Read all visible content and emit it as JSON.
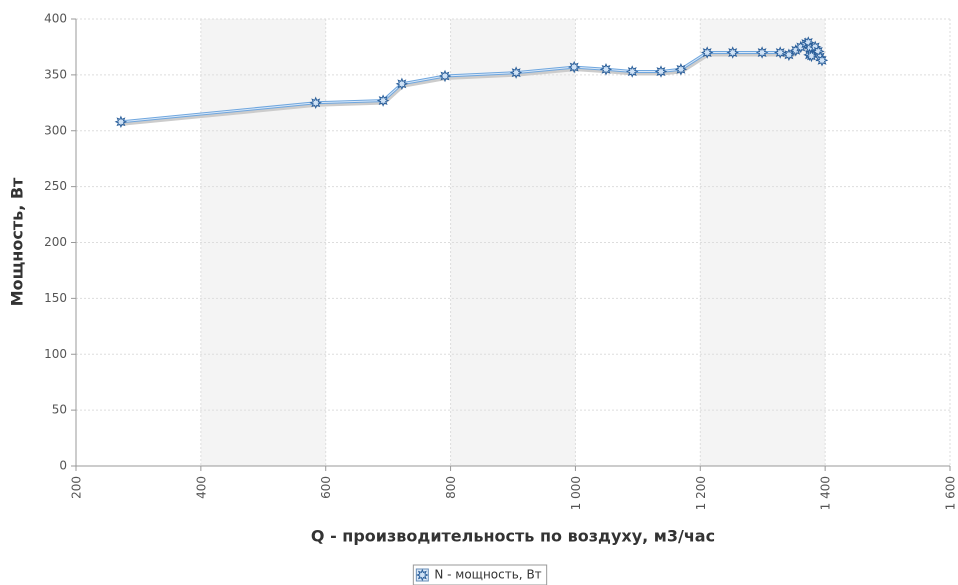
{
  "chart_data": {
    "type": "line",
    "x_label": "Q - производительность по воздуху, м3/час",
    "y_label": "Мощность, Вт",
    "xlim": [
      200,
      1600
    ],
    "xticks": [
      200,
      400,
      600,
      800,
      {
        "value": 1000,
        "label": "1 000"
      },
      {
        "value": 1200,
        "label": "1 200"
      },
      {
        "value": 1400,
        "label": "1 400"
      },
      {
        "value": 1600,
        "label": "1 600"
      }
    ],
    "ylim": [
      0,
      400
    ],
    "yticks": [
      0,
      50,
      100,
      150,
      200,
      250,
      300,
      350,
      400
    ],
    "grid": true,
    "legend": "bottom",
    "series": [
      {
        "name": "N - мощность, Вт",
        "color": "#6fa6de",
        "x": [
          272,
          584,
          692,
          722,
          791,
          905,
          998,
          1049,
          1091,
          1137,
          1169,
          1211,
          1252,
          1299,
          1328,
          1342,
          1353,
          1361,
          1369,
          1373,
          1376,
          1375,
          1378,
          1384,
          1389,
          1392,
          1395
        ],
        "values": [
          308,
          325,
          327,
          342,
          349,
          352,
          357,
          355,
          353,
          353,
          355,
          370,
          370,
          370,
          370,
          368,
          372,
          375,
          378,
          379,
          374,
          368,
          367,
          375,
          371,
          366,
          363
        ]
      }
    ]
  }
}
